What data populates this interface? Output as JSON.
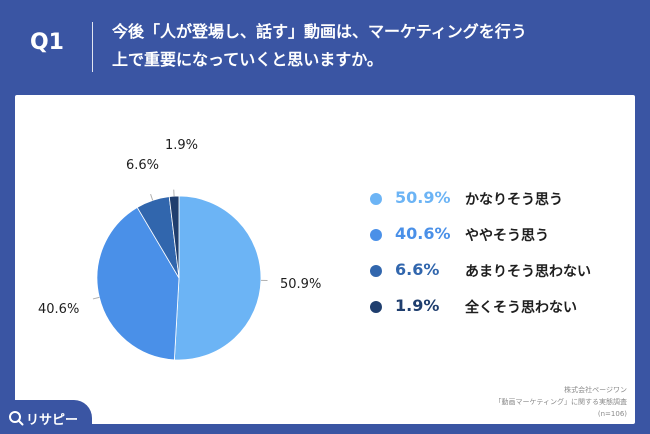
{
  "header": {
    "question_label": "Q1",
    "question_line1": "今後「人が登場し、話す」動画は、マーケティングを行う",
    "question_line2": "上で重要になっていくと思いますか。"
  },
  "chart_data": {
    "type": "pie",
    "title": "",
    "slices": [
      {
        "label": "かなりそう思う",
        "value": 50.9,
        "value_label": "50.9%",
        "color": "#6cb4f5"
      },
      {
        "label": "ややそう思う",
        "value": 40.6,
        "value_label": "40.6%",
        "color": "#4a90e8"
      },
      {
        "label": "あまりそう思わない",
        "value": 6.6,
        "value_label": "6.6%",
        "color": "#3166ad"
      },
      {
        "label": "全くそう思わない",
        "value": 1.9,
        "value_label": "1.9%",
        "color": "#1f3e6e"
      }
    ],
    "legend_position": "right"
  },
  "footer": {
    "line1": "株式会社ページワン",
    "line2": "「動画マーケティング」に関する実態調査",
    "line3": "(n=106)"
  },
  "logo": {
    "text": "リサピー",
    "icon": "magnifier-logo-icon"
  },
  "colors": {
    "background": "#3a55a3",
    "panel": "#ffffff"
  }
}
